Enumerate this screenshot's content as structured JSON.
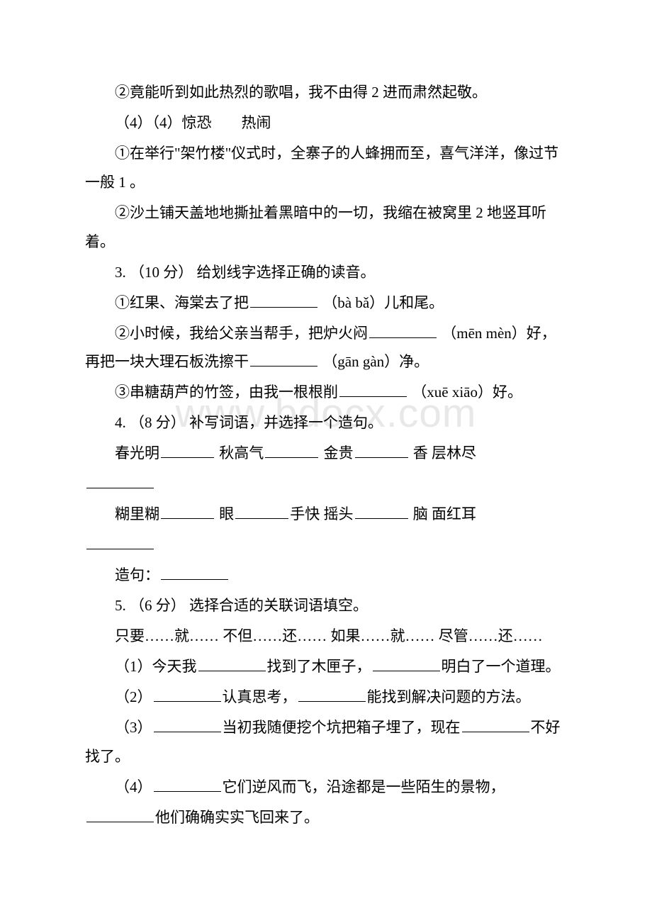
{
  "watermark": "www.bdocx.com",
  "lines": {
    "l1": "②竟能听到如此热烈的歌唱，我不由得 2 进而肃然起敬。",
    "l2": "（4）（4）惊恐　　热闹",
    "l3": "①在举行\"架竹楼\"仪式时，全寨子的人蜂拥而至，喜气洋洋，像过节一般 1  。",
    "l4": "②沙土铺天盖地地撕扯着黑暗中的一切，我缩在被窝里 2  地竖耳听着。",
    "l5": "3. （10 分）  给划线字选择正确的读音。",
    "l6a": "①红果、海棠去了把",
    "l6b": " （bà  bǎ）儿和尾。",
    "l7a": "②小时候，我给父亲当帮手，把炉火闷",
    "l7b": " （mēn  mèn）好，再把一块大理石板洗擦干",
    "l7c": " （gān  gàn）净。",
    "l8a": "③串糖葫芦的竹签，由我一根根削",
    "l8b": " （xuē  xiāo）好。",
    "l9": "4. （8 分）  补写词语，并选择一个造句。",
    "l10a": "春光明",
    "l10b": "   秋高气",
    "l10c": "   金贵",
    "l10d": " 香    层林尽",
    "l11a": "糊里糊",
    "l11b": "   眼",
    "l11c": "手快    摇头",
    "l11d": " 脑    面红耳",
    "l12": "造句：",
    "l13": "5. （6 分）  选择合适的关联词语填空。",
    "l14": "只要……就……   不但……还……   如果……就……   尽管……还……",
    "l15a": "（1）今天我",
    "l15b": "找到了木匣子，",
    "l15c": "明白了一个道理。",
    "l16a": "（2）",
    "l16b": "认真思考，",
    "l16c": "能找到解决问题的方法。",
    "l17a": "（3）",
    "l17b": "当初我随便挖个坑把箱子埋了，现在",
    "l17c": "不好找了。",
    "l18a": "（4）",
    "l18b": "它们逆风而飞，沿途都是一些陌生的景物，",
    "l18c": "他们确确实实飞回来了。"
  }
}
